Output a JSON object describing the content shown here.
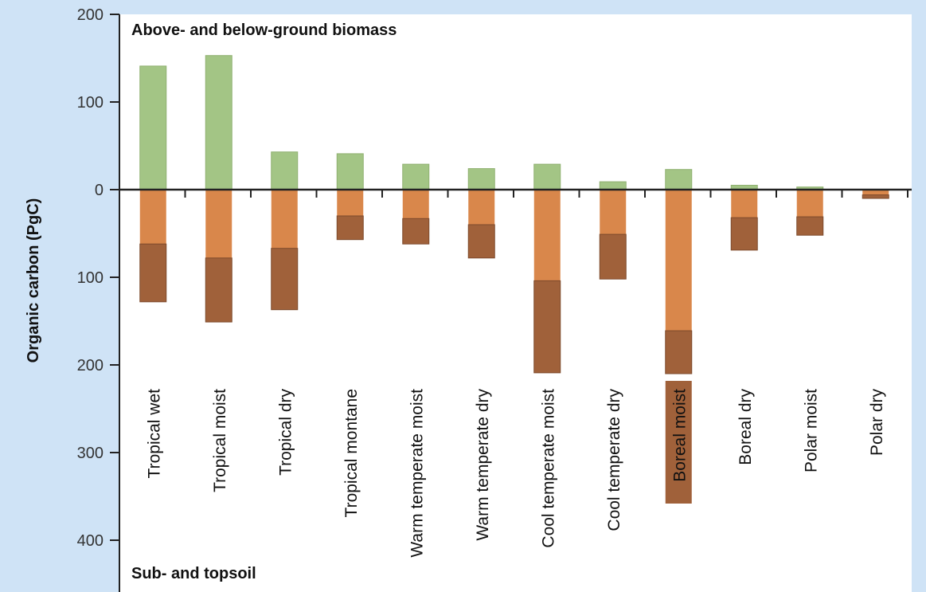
{
  "chart_data": {
    "type": "bar",
    "title": "",
    "xlabel": "",
    "ylabel": "Organic carbon (PgC)",
    "panel_labels": {
      "top": "Above- and below-ground biomass",
      "bottom": "Sub- and topsoil"
    },
    "y_ticks": [
      {
        "value": 200,
        "label": "200"
      },
      {
        "value": 100,
        "label": "100"
      },
      {
        "value": 0,
        "label": "0"
      },
      {
        "value": -100,
        "label": "100"
      },
      {
        "value": -200,
        "label": "200"
      },
      {
        "value": -300,
        "label": "300"
      },
      {
        "value": -400,
        "label": "400"
      }
    ],
    "ylim": [
      -450,
      200
    ],
    "categories": [
      "Tropical wet",
      "Tropical moist",
      "Tropical dry",
      "Tropical montane",
      "Warm temperate moist",
      "Warm temperate dry",
      "Cool temperate moist",
      "Cool temperate dry",
      "Boreal moist",
      "Boreal dry",
      "Polar moist",
      "Polar dry"
    ],
    "highlighted_category": "Boreal moist",
    "series": [
      {
        "key": "biomass",
        "values": [
          141,
          153,
          43,
          41,
          29,
          24,
          29,
          9,
          23,
          5,
          3,
          0
        ]
      },
      {
        "key": "topsoil",
        "values": [
          62,
          78,
          67,
          30,
          33,
          40,
          104,
          51,
          161,
          32,
          31,
          6
        ]
      },
      {
        "key": "subsoil",
        "values": [
          66,
          73,
          70,
          27,
          29,
          38,
          105,
          51,
          49,
          37,
          21,
          4
        ]
      }
    ],
    "colors": {
      "biomass": "#a3c585",
      "topsoil": "#d9874b",
      "subsoil": "#a0613a",
      "highlight_label_bg": "#a0613a",
      "highlight_label_text": "#ffffff",
      "panel_bg": "#ffffff",
      "page_bg": "#cfe3f6"
    },
    "grid": false
  }
}
